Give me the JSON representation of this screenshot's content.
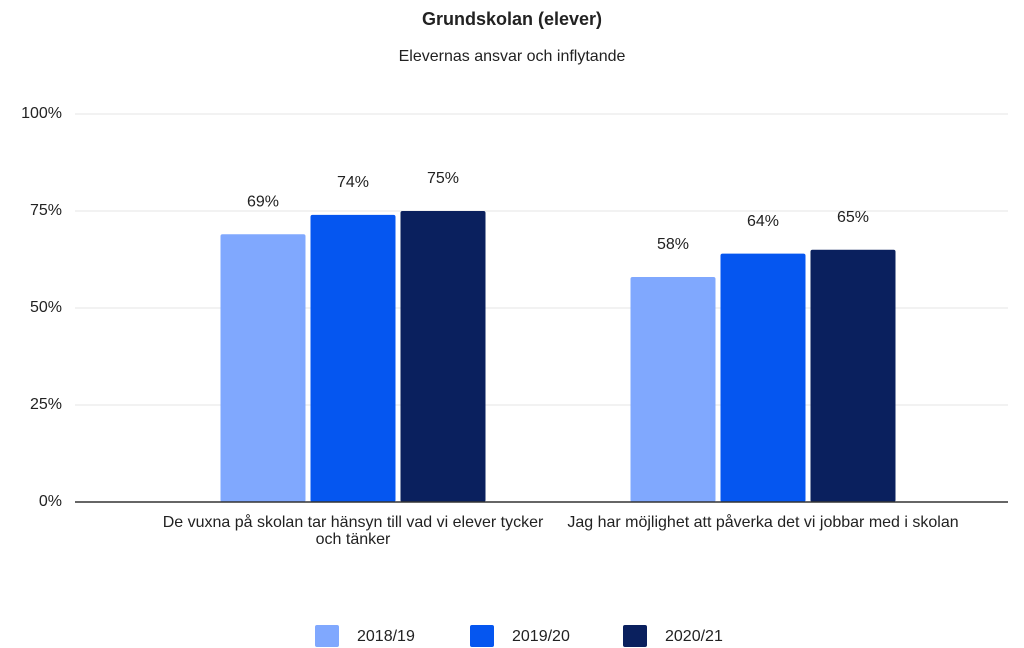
{
  "chart_data": {
    "type": "bar",
    "title": "Grundskolan (elever)",
    "subtitle": "Elevernas ansvar och inflytande",
    "categories": [
      "De vuxna på skolan tar hänsyn till vad vi elever tycker och tänker",
      "Jag har möjlighet att påverka det vi jobbar med i skolan"
    ],
    "series": [
      {
        "name": "2018/19",
        "color": "#80a8fe",
        "values": [
          69,
          58
        ],
        "value_labels": [
          "69%",
          "58%"
        ]
      },
      {
        "name": "2019/20",
        "color": "#0556f0",
        "values": [
          74,
          64
        ],
        "value_labels": [
          "74%",
          "64%"
        ]
      },
      {
        "name": "2020/21",
        "color": "#0a205e",
        "values": [
          75,
          65
        ],
        "value_labels": [
          "75%",
          "65%"
        ]
      }
    ],
    "ylim": [
      0,
      100
    ],
    "yticks": [
      {
        "value": 0,
        "label": "0%"
      },
      {
        "value": 25,
        "label": "25%"
      },
      {
        "value": 50,
        "label": "50%"
      },
      {
        "value": 75,
        "label": "75%"
      },
      {
        "value": 100,
        "label": "100%"
      }
    ],
    "grid": true,
    "legend": "bottom"
  }
}
